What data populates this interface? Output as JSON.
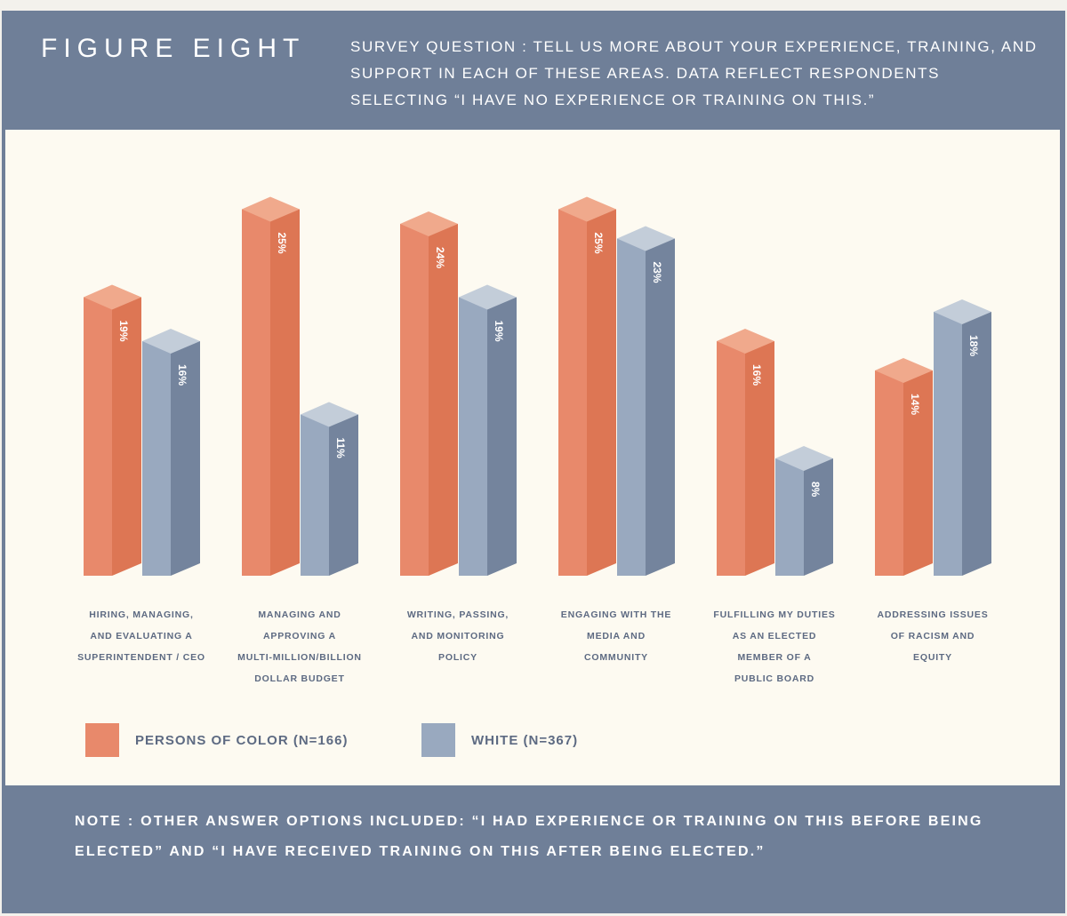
{
  "header": {
    "figure_label": "FIGURE EIGHT",
    "question": "SURVEY QUESTION : TELL US MORE ABOUT YOUR EXPERIENCE, TRAINING, AND SUPPORT IN EACH OF THESE AREAS. DATA REFLECT RESPONDENTS SELECTING “I HAVE NO EXPERIENCE OR TRAINING ON THIS.”"
  },
  "chart_data": {
    "type": "bar",
    "title": "FIGURE EIGHT",
    "categories": [
      "HIRING, MANAGING,\nAND EVALUATING A\nSUPERINTENDENT / CEO",
      "MANAGING AND\nAPPROVING A\nMULTI-MILLION/BILLION\nDOLLAR BUDGET",
      "WRITING, PASSING,\nAND MONITORING\nPOLICY",
      "ENGAGING WITH THE\nMEDIA AND\nCOMMUNITY",
      "FULFILLING MY DUTIES\nAS AN ELECTED\nMEMBER OF A\nPUBLIC BOARD",
      "ADDRESSING ISSUES\nOF RACISM AND\nEQUITY"
    ],
    "series": [
      {
        "name": "PERSONS OF COLOR (N=166)",
        "values": [
          19,
          25,
          24,
          25,
          16,
          14
        ],
        "labels": [
          "19%",
          "25%",
          "24%",
          "25%",
          "16%",
          "14%"
        ],
        "color_front": "#e8896b",
        "color_side": "#dd7654",
        "color_top": "#f0a98c"
      },
      {
        "name": "WHITE (N=367)",
        "values": [
          16,
          11,
          19,
          23,
          8,
          18
        ],
        "labels": [
          "16%",
          "11%",
          "19%",
          "23%",
          "8%",
          "18%"
        ],
        "color_front": "#99a9bf",
        "color_side": "#74849d",
        "color_top": "#c3cdd9"
      }
    ],
    "ylim": [
      0,
      25
    ],
    "grid": false,
    "legend_position": "bottom-left"
  },
  "legend": {
    "poc_label": "PERSONS OF COLOR (N=166)",
    "poc_color": "#e8896b",
    "white_label": "WHITE (N=367)",
    "white_color": "#99a9bf"
  },
  "note": "NOTE : OTHER ANSWER OPTIONS INCLUDED: “I HAD EXPERIENCE OR TRAINING ON THIS BEFORE BEING ELECTED” AND “I HAVE RECEIVED TRAINING ON THIS AFTER BEING ELECTED.”"
}
